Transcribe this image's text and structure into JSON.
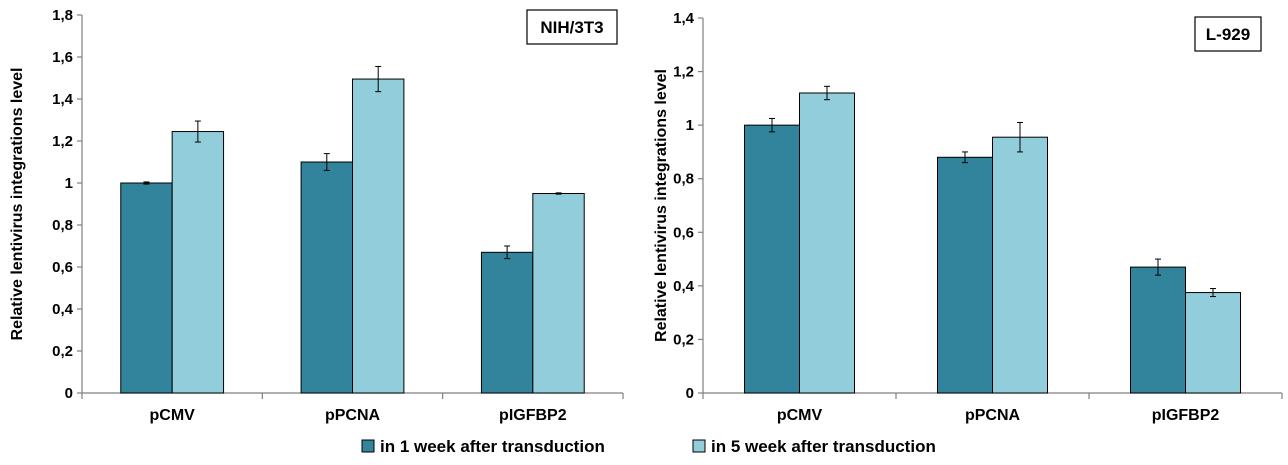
{
  "colors": {
    "series1": "#31849b",
    "series2": "#92cddc",
    "axis": "#808080",
    "bar_stroke": "#000000"
  },
  "legend": {
    "placement": "bottom-center",
    "items": [
      {
        "label": "in 1 week after transduction",
        "color": "#31849b"
      },
      {
        "label": "in 5 week after transduction",
        "color": "#92cddc"
      }
    ]
  },
  "chart_data": [
    {
      "type": "bar",
      "panel_label": "NIH/3T3",
      "ylabel": "Relative lentivirus integrations level",
      "ylim": [
        0,
        1.8
      ],
      "yticks": [
        0,
        0.2,
        0.4,
        0.6,
        0.8,
        1,
        1.2,
        1.4,
        1.6,
        1.8
      ],
      "ytick_labels": [
        "0",
        "0,2",
        "0,4",
        "0,6",
        "0,8",
        "1",
        "1,2",
        "1,4",
        "1,6",
        "1,8"
      ],
      "grid": false,
      "categories": [
        "pCMV",
        "pPCNA",
        "pIGFBP2"
      ],
      "series": [
        {
          "name": "in 1 week after transduction",
          "values": [
            1.0,
            1.1,
            0.67
          ],
          "errors": [
            0.005,
            0.04,
            0.03
          ]
        },
        {
          "name": "in 5 week after transduction",
          "values": [
            1.245,
            1.495,
            0.95
          ],
          "errors": [
            0.05,
            0.06,
            0.003
          ]
        }
      ]
    },
    {
      "type": "bar",
      "panel_label": "L-929",
      "ylabel": "Relative lentivirus integrations level",
      "ylim": [
        0,
        1.4
      ],
      "yticks": [
        0,
        0.2,
        0.4,
        0.6,
        0.8,
        1,
        1.2,
        1.4
      ],
      "ytick_labels": [
        "0",
        "0,2",
        "0,4",
        "0,6",
        "0,8",
        "1",
        "1,2",
        "1,4"
      ],
      "grid": false,
      "categories": [
        "pCMV",
        "pPCNA",
        "pIGFBP2"
      ],
      "series": [
        {
          "name": "in 1 week after transduction",
          "values": [
            1.0,
            0.88,
            0.47
          ],
          "errors": [
            0.025,
            0.02,
            0.03
          ]
        },
        {
          "name": "in 5 week after transduction",
          "values": [
            1.12,
            0.955,
            0.375
          ],
          "errors": [
            0.025,
            0.055,
            0.015
          ]
        }
      ]
    }
  ]
}
